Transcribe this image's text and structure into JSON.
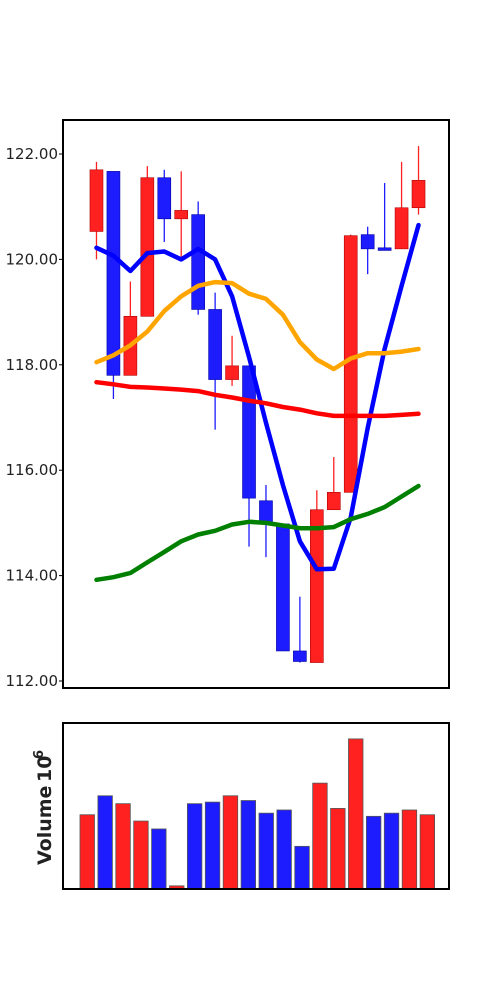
{
  "chart_data": [
    {
      "type": "candlestick",
      "title": "",
      "xlabel": "",
      "ylabel": "",
      "ylim": [
        112.0,
        122.6
      ],
      "y_ticks": [
        112,
        114,
        116,
        118,
        120,
        122
      ],
      "y_tick_labels": [
        "112.00",
        "114.00",
        "116.00",
        "118.00",
        "120.00",
        "122.00"
      ],
      "grid": false,
      "colors": {
        "up": "#ff2020",
        "down": "#1c1cff"
      },
      "candles": [
        {
          "open": 120.53,
          "high": 121.85,
          "low": 120.0,
          "close": 121.7,
          "color": "up"
        },
        {
          "open": 121.67,
          "high": 121.67,
          "low": 117.35,
          "close": 117.8,
          "color": "down"
        },
        {
          "open": 117.8,
          "high": 119.58,
          "low": 117.8,
          "close": 118.92,
          "color": "up"
        },
        {
          "open": 118.92,
          "high": 121.77,
          "low": 118.92,
          "close": 121.55,
          "color": "up"
        },
        {
          "open": 121.55,
          "high": 121.7,
          "low": 120.33,
          "close": 120.77,
          "color": "down"
        },
        {
          "open": 120.77,
          "high": 121.67,
          "low": 120.0,
          "close": 120.93,
          "color": "up"
        },
        {
          "open": 120.85,
          "high": 121.1,
          "low": 118.95,
          "close": 119.05,
          "color": "down"
        },
        {
          "open": 119.05,
          "high": 119.37,
          "low": 116.77,
          "close": 117.72,
          "color": "down"
        },
        {
          "open": 117.72,
          "high": 118.55,
          "low": 117.6,
          "close": 117.98,
          "color": "up"
        },
        {
          "open": 117.98,
          "high": 117.98,
          "low": 114.55,
          "close": 115.47,
          "color": "down"
        },
        {
          "open": 115.42,
          "high": 115.72,
          "low": 114.35,
          "close": 114.98,
          "color": "down"
        },
        {
          "open": 114.98,
          "high": 114.98,
          "low": 112.57,
          "close": 112.57,
          "color": "down"
        },
        {
          "open": 112.57,
          "high": 113.6,
          "low": 112.35,
          "close": 112.37,
          "color": "down"
        },
        {
          "open": 112.35,
          "high": 115.62,
          "low": 112.35,
          "close": 115.25,
          "color": "up"
        },
        {
          "open": 115.25,
          "high": 116.25,
          "low": 115.25,
          "close": 115.58,
          "color": "up"
        },
        {
          "open": 115.58,
          "high": 120.47,
          "low": 115.58,
          "close": 120.45,
          "color": "up"
        },
        {
          "open": 120.47,
          "high": 120.62,
          "low": 119.72,
          "close": 120.2,
          "color": "down"
        },
        {
          "open": 120.22,
          "high": 121.45,
          "low": 120.17,
          "close": 120.17,
          "color": "down"
        },
        {
          "open": 120.2,
          "high": 121.85,
          "low": 120.2,
          "close": 120.98,
          "color": "up"
        },
        {
          "open": 120.98,
          "high": 122.15,
          "low": 120.85,
          "close": 121.5,
          "color": "up"
        }
      ],
      "series": [
        {
          "color": "#0000ff",
          "values": [
            120.22,
            120.07,
            119.78,
            120.12,
            120.15,
            120.0,
            120.2,
            120.0,
            119.3,
            118.15,
            116.9,
            115.72,
            114.65,
            114.12,
            114.13,
            115.1,
            116.8,
            118.3,
            119.5,
            120.65
          ]
        },
        {
          "color": "#ffa500",
          "values": [
            118.05,
            118.18,
            118.37,
            118.63,
            119.02,
            119.3,
            119.5,
            119.57,
            119.55,
            119.35,
            119.25,
            118.95,
            118.43,
            118.1,
            117.92,
            118.12,
            118.22,
            118.22,
            118.25,
            118.3
          ]
        },
        {
          "color": "#ff0000",
          "values": [
            117.67,
            117.63,
            117.58,
            117.57,
            117.55,
            117.53,
            117.5,
            117.43,
            117.38,
            117.32,
            117.27,
            117.2,
            117.15,
            117.08,
            117.03,
            117.03,
            117.03,
            117.03,
            117.05,
            117.07
          ]
        },
        {
          "color": "#008000",
          "values": [
            113.92,
            113.97,
            114.05,
            114.25,
            114.45,
            114.65,
            114.78,
            114.85,
            114.97,
            115.02,
            115.0,
            114.95,
            114.9,
            114.9,
            114.92,
            115.07,
            115.17,
            115.3,
            115.5,
            115.7
          ]
        }
      ]
    },
    {
      "type": "bar",
      "title": "",
      "ylabel": "Volume",
      "ylabel_exponent": "6",
      "ylabel_base": "10",
      "ylim": [
        0,
        1.0
      ],
      "values": [
        0.47,
        0.59,
        0.54,
        0.43,
        0.38,
        0.02,
        0.54,
        0.55,
        0.59,
        0.56,
        0.48,
        0.5,
        0.27,
        0.67,
        0.51,
        0.95,
        0.46,
        0.48,
        0.5,
        0.47
      ],
      "colors": [
        "up",
        "down",
        "up",
        "up",
        "down",
        "up",
        "down",
        "down",
        "up",
        "down",
        "down",
        "down",
        "down",
        "up",
        "up",
        "up",
        "down",
        "down",
        "up",
        "up"
      ]
    }
  ]
}
